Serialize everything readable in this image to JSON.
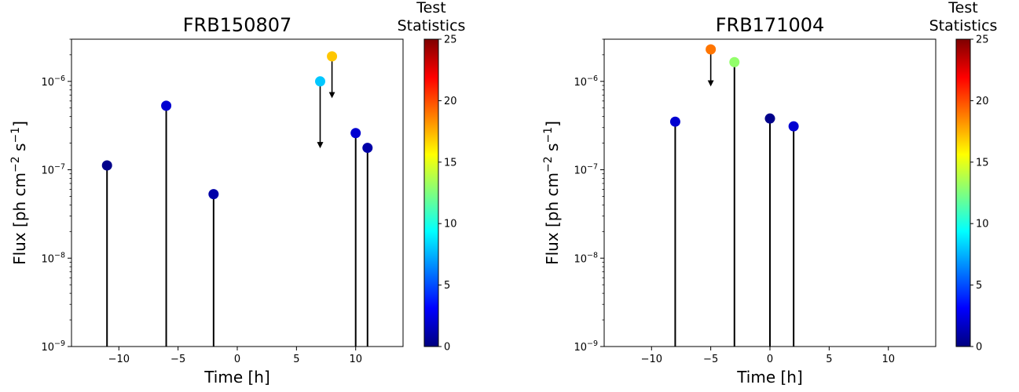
{
  "colormap": {
    "name": "jet",
    "stops": [
      "#00007f",
      "#0000ff",
      "#007fff",
      "#00ffff",
      "#7fff7f",
      "#ffff00",
      "#ff7f00",
      "#ff0000",
      "#7f0000"
    ]
  },
  "chart_data": [
    {
      "type": "scatter",
      "title": "FRB150807",
      "xlabel": "Time [h]",
      "ylabel_main": "Flux [ph cm",
      "ylabel_sup1": "−2",
      "ylabel_mid": " s",
      "ylabel_sup2": "−1",
      "ylabel_end": "]",
      "xlim": [
        -14,
        14
      ],
      "ylim": [
        1e-09,
        3e-06
      ],
      "yscale": "log",
      "xticks": [
        -10,
        -5,
        0,
        5,
        10
      ],
      "xtick_labels": [
        "−10",
        "−5",
        "0",
        "5",
        "10"
      ],
      "ytick_labels": [
        {
          "value": 1e-09,
          "base": "10",
          "exp": "−9"
        },
        {
          "value": 1e-08,
          "base": "10",
          "exp": "−8"
        },
        {
          "value": 1e-07,
          "base": "10",
          "exp": "−7"
        },
        {
          "value": 1e-06,
          "base": "10",
          "exp": "−6"
        }
      ],
      "colorbar": {
        "title_line1": "Test",
        "title_line2": "Statistics",
        "range": [
          0,
          25
        ],
        "ticks": [
          "0",
          "5",
          "10",
          "15",
          "20",
          "25"
        ]
      },
      "points": [
        {
          "x": -11,
          "flux": 1.12e-07,
          "ts": 0.3,
          "upper_limit": false
        },
        {
          "x": -6,
          "flux": 5.3e-07,
          "ts": 2,
          "upper_limit": false
        },
        {
          "x": -2,
          "flux": 5.3e-08,
          "ts": 1,
          "upper_limit": false
        },
        {
          "x": 7,
          "flux": 1e-06,
          "ts": 8,
          "upper_limit": true,
          "arrow_to": 1.9e-07
        },
        {
          "x": 8,
          "flux": 1.92e-06,
          "ts": 17,
          "upper_limit": true,
          "arrow_to": 7e-07
        },
        {
          "x": 10,
          "flux": 2.6e-07,
          "ts": 2,
          "upper_limit": false
        },
        {
          "x": 11,
          "flux": 1.77e-07,
          "ts": 1,
          "upper_limit": false
        }
      ]
    },
    {
      "type": "scatter",
      "title": "FRB171004",
      "xlabel": "Time [h]",
      "ylabel_main": "Flux [ph cm",
      "ylabel_sup1": "−2",
      "ylabel_mid": " s",
      "ylabel_sup2": "−1",
      "ylabel_end": "]",
      "xlim": [
        -14,
        14
      ],
      "ylim": [
        1e-09,
        3e-06
      ],
      "yscale": "log",
      "xticks": [
        -10,
        -5,
        0,
        5,
        10
      ],
      "xtick_labels": [
        "−10",
        "−5",
        "0",
        "5",
        "10"
      ],
      "ytick_labels": [
        {
          "value": 1e-09,
          "base": "10",
          "exp": "−9"
        },
        {
          "value": 1e-08,
          "base": "10",
          "exp": "−8"
        },
        {
          "value": 1e-07,
          "base": "10",
          "exp": "−7"
        },
        {
          "value": 1e-06,
          "base": "10",
          "exp": "−6"
        }
      ],
      "colorbar": {
        "title_line1": "Test",
        "title_line2": "Statistics",
        "range": [
          0,
          25
        ],
        "ticks": [
          "0",
          "5",
          "10",
          "15",
          "20",
          "25"
        ]
      },
      "points": [
        {
          "x": -8,
          "flux": 3.5e-07,
          "ts": 2,
          "upper_limit": false
        },
        {
          "x": -5,
          "flux": 2.3e-06,
          "ts": 19,
          "upper_limit": true,
          "arrow_to": 9.5e-07
        },
        {
          "x": -3,
          "flux": 1.65e-06,
          "ts": 13,
          "upper_limit": false
        },
        {
          "x": 0,
          "flux": 3.8e-07,
          "ts": 0.3,
          "upper_limit": false
        },
        {
          "x": 2,
          "flux": 3.1e-07,
          "ts": 2,
          "upper_limit": false
        }
      ]
    }
  ]
}
